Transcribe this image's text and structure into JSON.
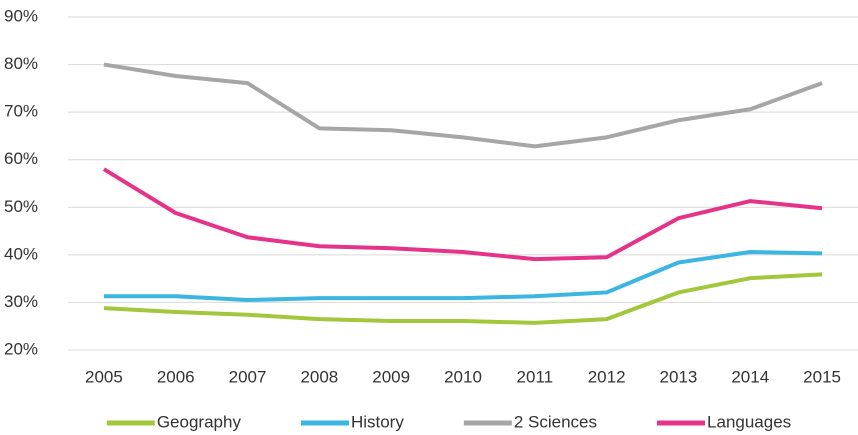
{
  "chart_data": {
    "type": "line",
    "categories": [
      "2005",
      "2006",
      "2007",
      "2008",
      "2009",
      "2010",
      "2011",
      "2012",
      "2013",
      "2014",
      "2015"
    ],
    "series": [
      {
        "name": "Geography",
        "color": "#a2c73b",
        "values": [
          28.8,
          28.0,
          27.4,
          26.5,
          26.1,
          26.1,
          25.7,
          26.5,
          32.1,
          35.1,
          35.9
        ]
      },
      {
        "name": "History",
        "color": "#3bb5e2",
        "values": [
          31.3,
          31.3,
          30.5,
          30.9,
          30.9,
          30.9,
          31.3,
          32.1,
          38.4,
          40.6,
          40.3
        ]
      },
      {
        "name": "2 Sciences",
        "color": "#a6a6a6",
        "values": [
          80.0,
          77.6,
          76.1,
          66.6,
          66.2,
          64.7,
          62.8,
          64.7,
          68.3,
          70.6,
          76.1
        ]
      },
      {
        "name": "Languages",
        "color": "#e5338a",
        "values": [
          58.0,
          48.8,
          43.7,
          41.8,
          41.4,
          40.6,
          39.1,
          39.5,
          47.7,
          51.3,
          49.8
        ]
      }
    ],
    "ylim": [
      20,
      90
    ],
    "yticks": [
      {
        "value": 20,
        "label": "20%"
      },
      {
        "value": 30,
        "label": "30%"
      },
      {
        "value": 40,
        "label": "40%"
      },
      {
        "value": 50,
        "label": "50%"
      },
      {
        "value": 60,
        "label": "60%"
      },
      {
        "value": 70,
        "label": "70%"
      },
      {
        "value": 80,
        "label": "80%"
      },
      {
        "value": 90,
        "label": "90%"
      }
    ],
    "grid": true,
    "legend": "bottom"
  }
}
